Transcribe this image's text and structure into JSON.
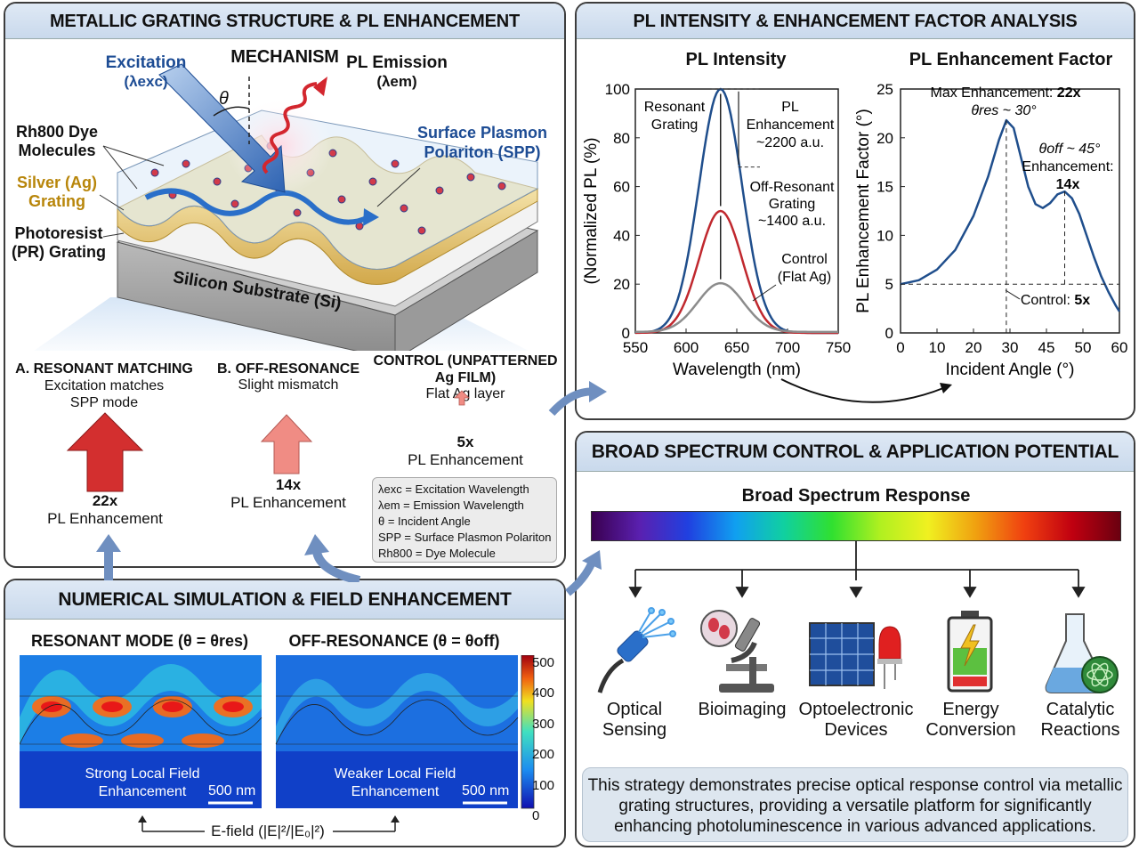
{
  "panel_mechanism": {
    "title": "METALLIC GRATING STRUCTURE & PL ENHANCEMENT MECHANISM",
    "excitation": "Excitation",
    "lambda_exc": "(λexc)",
    "theta": "θ",
    "pl_emission": "PL Emission",
    "lambda_em": "(λem)",
    "dye_label": "Rh800 Dye Molecules",
    "silver_label": "Silver (Ag) Grating",
    "pr_label": "Photoresist (PR) Grating",
    "spp_label": "Surface Plasmon Polariton (SPP)",
    "substrate_label": "Silicon Substrate (Si)",
    "cases": [
      {
        "title": "A. RESONANT MATCHING",
        "desc": "Excitation matches SPP mode",
        "value": "22x",
        "caption": "PL Enhancement"
      },
      {
        "title": "B. OFF-RESONANCE",
        "desc": "Slight mismatch",
        "value": "14x",
        "caption": "PL Enhancement"
      },
      {
        "title": "CONTROL (UNPATTERNED Ag FILM)",
        "desc": "Flat Ag layer",
        "value": "5x",
        "caption": "PL Enhancement"
      }
    ],
    "legend": [
      "λexc = Excitation Wavelength",
      "λem = Emission Wavelength",
      "θ = Incident Angle",
      "SPP = Surface Plasmon Polariton",
      "Rh800 = Dye Molecule"
    ]
  },
  "panel_simulation": {
    "title": "NUMERICAL SIMULATION & FIELD ENHANCEMENT",
    "resonant_title": "RESONANT MODE (θ = θres)",
    "off_title": "OFF-RESONANCE (θ = θoff)",
    "resonant_caption": "Strong Local Field Enhancement",
    "off_caption": "Weaker Local Field Enhancement",
    "scale_bar": "500 nm",
    "colorbar_ticks": [
      "500",
      "400",
      "300",
      "200",
      "100",
      "0"
    ],
    "efield_label": "E-field (|E|²/|E₀|²)"
  },
  "panel_pl": {
    "title": "PL INTENSITY & ENHANCEMENT FACTOR ANALYSIS"
  },
  "chart_data": [
    {
      "type": "line",
      "title": "PL Intensity",
      "xlabel": "Wavelength (nm)",
      "ylabel": "(Normalized PL (%)",
      "xlim": [
        550,
        750
      ],
      "ylim": [
        0,
        100
      ],
      "xticks": [
        "550",
        "600",
        "650",
        "700",
        "750"
      ],
      "yticks": [
        "0",
        "20",
        "40",
        "60",
        "80",
        "100"
      ],
      "series": [
        {
          "name": "Resonant Grating",
          "color": "#1f4e8c",
          "peak_x": 634,
          "peak_y": 100,
          "width": 30
        },
        {
          "name": "Off-Resonant Grating",
          "color": "#c0282e",
          "peak_x": 634,
          "peak_y": 50,
          "width": 30
        },
        {
          "name": "Control (Flat Ag)",
          "color": "#8c8c8c",
          "peak_x": 634,
          "peak_y": 20,
          "width": 32
        }
      ],
      "annotations": {
        "resonant": "Resonant Grating",
        "pl_enh": "PL Enhancement ~2200 a.u.",
        "off": "Off-Resonant Grating ~1400 a.u.",
        "control": "Control (Flat Ag)"
      }
    },
    {
      "type": "line",
      "title": "PL Enhancement Factor",
      "xlabel": "Incident Angle (°)",
      "ylabel": "PL Enhancement Factor (°)",
      "xlim": [
        0,
        60
      ],
      "ylim": [
        0,
        25
      ],
      "xticks": [
        "0",
        "10",
        "20",
        "30",
        "45",
        "50",
        "60"
      ],
      "yticks": [
        "0",
        "5",
        "10",
        "15",
        "20",
        "25"
      ],
      "series": [
        {
          "name": "Enhancement",
          "color": "#1f4e8c",
          "x": [
            0,
            5,
            10,
            15,
            20,
            24,
            27,
            29,
            31,
            33,
            35,
            37,
            39,
            41,
            43,
            45,
            47,
            49,
            51,
            53,
            55,
            57,
            59,
            60
          ],
          "y": [
            5,
            5.4,
            6.5,
            8.5,
            12,
            16,
            19.8,
            21.8,
            21,
            18,
            15,
            13.2,
            12.8,
            13.3,
            14.2,
            14.5,
            13.8,
            12.2,
            10,
            7.8,
            5.8,
            4.2,
            2.8,
            2.2
          ]
        }
      ],
      "annotations": {
        "max_label": "Max Enhancement:",
        "max_value": "22x",
        "theta_res": "θres ~ 30°",
        "theta_off": "θoff ~ 45°",
        "enh_label": "Enhancement:",
        "enh_value": "14x",
        "control_label": "Control:",
        "control_value": "5x"
      }
    }
  ],
  "panel_broad": {
    "title": "BROAD SPECTRUM CONTROL & APPLICATION POTENTIAL",
    "spectrum_label": "Broad Spectrum Response",
    "applications": [
      {
        "line1": "Optical",
        "line2": "Sensing"
      },
      {
        "line1": "Bioimaging",
        "line2": ""
      },
      {
        "line1": "Optoelectronic",
        "line2": "Devices"
      },
      {
        "line1": "Energy",
        "line2": "Conversion"
      },
      {
        "line1": "Catalytic",
        "line2": "Reactions"
      }
    ],
    "summary": "This strategy demonstrates precise optical response control via metallic grating structures, providing a versatile platform for significantly enhancing photoluminescence in various advanced applications."
  },
  "colors": {
    "resonant": "#1f4e8c",
    "off_resonant": "#c0282e",
    "control": "#8c8c8c",
    "arrow_red": "#d32f2f",
    "arrow_pink": "#f08c84",
    "title_bar": "#d3e0ee"
  }
}
